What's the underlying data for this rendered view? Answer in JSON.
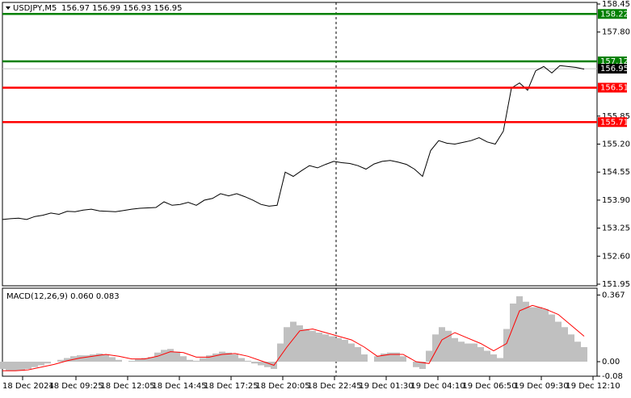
{
  "chart_data": [
    {
      "type": "line",
      "title": "USDJPY,M5",
      "subtitle": "156.97 156.99 156.93 156.95",
      "series": [
        {
          "color": "#000000",
          "values": [
            153.45,
            153.47,
            153.48,
            153.45,
            153.52,
            153.55,
            153.6,
            153.57,
            153.64,
            153.63,
            153.67,
            153.69,
            153.65,
            153.64,
            153.63,
            153.66,
            153.69,
            153.71,
            153.72,
            153.73,
            153.86,
            153.78,
            153.8,
            153.85,
            153.78,
            153.9,
            153.94,
            154.05,
            154.0,
            154.05,
            153.98,
            153.9,
            153.8,
            153.76,
            153.78,
            154.55,
            154.45,
            154.58,
            154.7,
            154.65,
            154.73,
            154.8,
            154.77,
            154.75,
            154.7,
            154.62,
            154.74,
            154.8,
            154.82,
            154.78,
            154.73,
            154.62,
            154.45,
            155.05,
            155.28,
            155.22,
            155.2,
            155.24,
            155.28,
            155.35,
            155.25,
            155.2,
            155.5,
            156.5,
            156.62,
            156.45,
            156.9,
            157.0,
            156.85,
            157.02,
            157.0,
            156.98,
            156.94
          ]
        }
      ],
      "ylim": [
        151.95,
        158.45
      ],
      "yticks": [
        158.45,
        {
          "value": 157.8,
          "label": "157.80"
        },
        155.85,
        {
          "value": 155.2,
          "label": "155.20"
        },
        154.55,
        {
          "value": 153.9,
          "label": "153.90"
        },
        153.25,
        {
          "value": 152.6,
          "label": "152.60"
        },
        151.95
      ],
      "levels": [
        {
          "value": 158.22,
          "color": "#008000"
        },
        {
          "value": 157.12,
          "color": "#008000"
        },
        {
          "value": 156.51,
          "color": "#ff0000"
        },
        {
          "value": 155.71,
          "color": "#ff0000"
        }
      ],
      "current_price": 156.95,
      "x_labels": [
        "18 Dec 2024",
        "18 Dec 09:25",
        "18 Dec 12:05",
        "18 Dec 14:45",
        "18 Dec 17:25",
        "18 Dec 20:05",
        "18 Dec 22:45",
        "19 Dec 01:30",
        "19 Dec 04:10",
        "19 Dec 06:50",
        "19 Dec 09:30",
        "19 Dec 12:10"
      ]
    },
    {
      "type": "macd",
      "title": "MACD(12,26,9) 0.060 0.083",
      "series": [
        {
          "color": "#c0c0c0",
          "values": [
            -0.04,
            -0.05,
            -0.05,
            -0.05,
            -0.04,
            -0.03,
            -0.02,
            -0.01,
            0.0,
            0.01,
            0.02,
            0.03,
            0.035,
            0.035,
            0.04,
            0.045,
            0.04,
            0.025,
            0.01,
            0.0,
            0.005,
            0.015,
            0.02,
            0.025,
            0.05,
            0.065,
            0.07,
            0.055,
            0.03,
            0.01,
            0.005,
            0.02,
            0.035,
            0.045,
            0.055,
            0.05,
            0.04,
            0.02,
            0.005,
            -0.01,
            -0.02,
            -0.03,
            -0.04,
            0.1,
            0.19,
            0.22,
            0.2,
            0.18,
            0.17,
            0.16,
            0.15,
            0.14,
            0.13,
            0.12,
            0.1,
            0.08,
            0.04,
            0.0,
            0.03,
            0.045,
            0.05,
            0.05,
            0.03,
            0.0,
            -0.03,
            -0.04,
            0.06,
            0.15,
            0.19,
            0.17,
            0.13,
            0.11,
            0.1,
            0.1,
            0.08,
            0.06,
            0.04,
            0.02,
            0.18,
            0.32,
            0.36,
            0.33,
            0.3,
            0.3,
            0.29,
            0.26,
            0.22,
            0.19,
            0.15,
            0.11,
            0.08
          ]
        },
        {
          "color": "#ff0000",
          "values": [
            -0.05,
            -0.05,
            -0.045,
            -0.03,
            -0.015,
            0.005,
            0.02,
            0.03,
            0.04,
            0.03,
            0.015,
            0.015,
            0.03,
            0.055,
            0.05,
            0.025,
            0.025,
            0.04,
            0.045,
            0.03,
            0.005,
            -0.02,
            0.08,
            0.17,
            0.18,
            0.16,
            0.14,
            0.12,
            0.08,
            0.03,
            0.04,
            0.04,
            0.0,
            -0.01,
            0.12,
            0.16,
            0.13,
            0.1,
            0.06,
            0.1,
            0.28,
            0.31,
            0.29,
            0.26,
            0.2,
            0.14
          ]
        }
      ],
      "ylim": [
        -0.08,
        0.4
      ],
      "yticks": [
        0.367,
        {
          "value": 0,
          "label": "0.00"
        },
        -0.08
      ]
    }
  ]
}
